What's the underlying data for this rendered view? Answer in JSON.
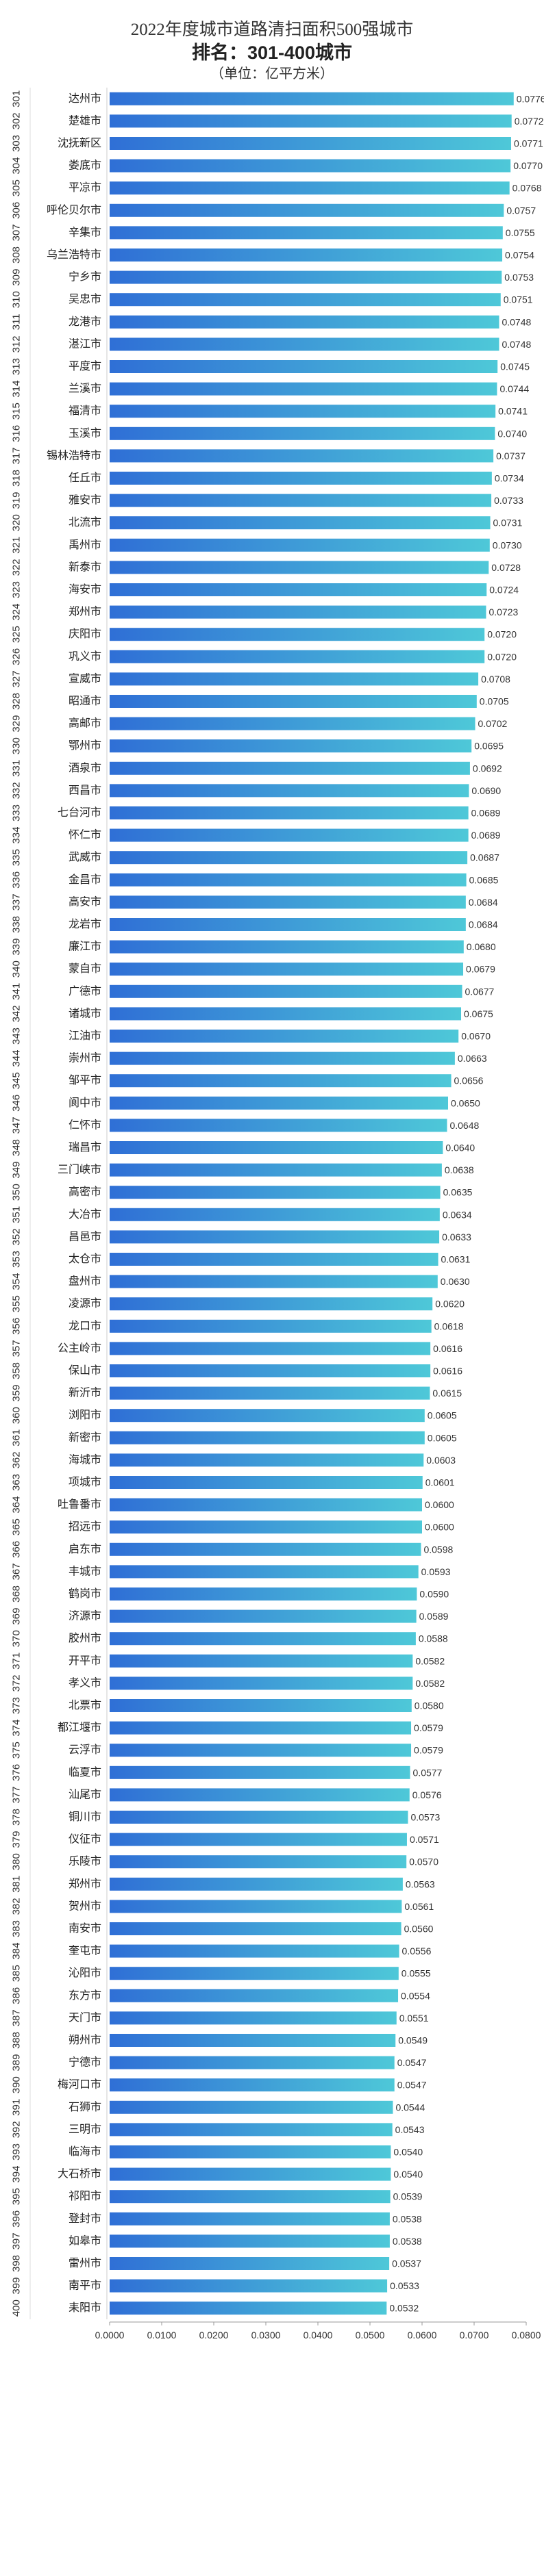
{
  "header": {
    "title": "2022年度城市道路清扫面积500强城市",
    "subtitle": "排名：301-400城市",
    "unit": "（单位：亿平方米）"
  },
  "chart_data": {
    "type": "bar",
    "orientation": "horizontal",
    "xlim": [
      0,
      0.08
    ],
    "xticks": [
      "0.0000",
      "0.0100",
      "0.0200",
      "0.0300",
      "0.0400",
      "0.0500",
      "0.0600",
      "0.0700",
      "0.0800"
    ],
    "grid": false,
    "bar_color_start": "#2f6fd6",
    "bar_color_end": "#4ec8d8",
    "ranks": [
      "301",
      "302",
      "303",
      "304",
      "305",
      "306",
      "307",
      "308",
      "309",
      "310",
      "311",
      "312",
      "313",
      "314",
      "315",
      "316",
      "317",
      "318",
      "319",
      "320",
      "321",
      "322",
      "323",
      "324",
      "325",
      "326",
      "327",
      "328",
      "329",
      "330",
      "331",
      "332",
      "333",
      "334",
      "335",
      "336",
      "337",
      "338",
      "339",
      "340",
      "341",
      "342",
      "343",
      "344",
      "345",
      "346",
      "347",
      "348",
      "349",
      "350",
      "351",
      "352",
      "353",
      "354",
      "355",
      "356",
      "357",
      "358",
      "359",
      "360",
      "361",
      "362",
      "363",
      "364",
      "365",
      "366",
      "367",
      "368",
      "369",
      "370",
      "371",
      "372",
      "373",
      "374",
      "375",
      "376",
      "377",
      "378",
      "379",
      "380",
      "381",
      "382",
      "383",
      "384",
      "385",
      "386",
      "387",
      "388",
      "389",
      "390",
      "391",
      "392",
      "393",
      "394",
      "395",
      "396",
      "397",
      "398",
      "399",
      "400"
    ],
    "categories": [
      "达州市",
      "楚雄市",
      "沈抚新区",
      "娄底市",
      "平凉市",
      "呼伦贝尔市",
      "辛集市",
      "乌兰浩特市",
      "宁乡市",
      "吴忠市",
      "龙港市",
      "湛江市",
      "平度市",
      "兰溪市",
      "福清市",
      "玉溪市",
      "锡林浩特市",
      "任丘市",
      "雅安市",
      "北流市",
      "禹州市",
      "新泰市",
      "海安市",
      "郑州市",
      "庆阳市",
      "巩义市",
      "宣威市",
      "昭通市",
      "高邮市",
      "鄂州市",
      "酒泉市",
      "西昌市",
      "七台河市",
      "怀仁市",
      "武威市",
      "金昌市",
      "高安市",
      "龙岩市",
      "廉江市",
      "蒙自市",
      "广德市",
      "诸城市",
      "江油市",
      "崇州市",
      "邹平市",
      "阆中市",
      "仁怀市",
      "瑞昌市",
      "三门峡市",
      "高密市",
      "大冶市",
      "昌邑市",
      "太仓市",
      "盘州市",
      "凌源市",
      "龙口市",
      "公主岭市",
      "保山市",
      "新沂市",
      "浏阳市",
      "新密市",
      "海城市",
      "项城市",
      "吐鲁番市",
      "招远市",
      "启东市",
      "丰城市",
      "鹤岗市",
      "济源市",
      "胶州市",
      "开平市",
      "孝义市",
      "北票市",
      "都江堰市",
      "云浮市",
      "临夏市",
      "汕尾市",
      "铜川市",
      "仪征市",
      "乐陵市",
      "郑州市",
      "贺州市",
      "南安市",
      "奎屯市",
      "沁阳市",
      "东方市",
      "天门市",
      "朔州市",
      "宁德市",
      "梅河口市",
      "石狮市",
      "三明市",
      "临海市",
      "大石桥市",
      "祁阳市",
      "登封市",
      "如皋市",
      "雷州市",
      "南平市",
      "耒阳市"
    ],
    "values": [
      0.0776,
      0.0772,
      0.0771,
      0.077,
      0.0768,
      0.0757,
      0.0755,
      0.0754,
      0.0753,
      0.0751,
      0.0748,
      0.0748,
      0.0745,
      0.0744,
      0.0741,
      0.074,
      0.0737,
      0.0734,
      0.0733,
      0.0731,
      0.073,
      0.0728,
      0.0724,
      0.0723,
      0.072,
      0.072,
      0.0708,
      0.0705,
      0.0702,
      0.0695,
      0.0692,
      0.069,
      0.0689,
      0.0689,
      0.0687,
      0.0685,
      0.0684,
      0.0684,
      0.068,
      0.0679,
      0.0677,
      0.0675,
      0.067,
      0.0663,
      0.0656,
      0.065,
      0.0648,
      0.064,
      0.0638,
      0.0635,
      0.0634,
      0.0633,
      0.0631,
      0.063,
      0.062,
      0.0618,
      0.0616,
      0.0616,
      0.0615,
      0.0605,
      0.0605,
      0.0603,
      0.0601,
      0.06,
      0.06,
      0.0598,
      0.0593,
      0.059,
      0.0589,
      0.0588,
      0.0582,
      0.0582,
      0.058,
      0.0579,
      0.0579,
      0.0577,
      0.0576,
      0.0573,
      0.0571,
      0.057,
      0.0563,
      0.0561,
      0.056,
      0.0556,
      0.0555,
      0.0554,
      0.0551,
      0.0549,
      0.0547,
      0.0547,
      0.0544,
      0.0543,
      0.054,
      0.054,
      0.0539,
      0.0538,
      0.0538,
      0.0537,
      0.0533,
      0.0532
    ]
  }
}
